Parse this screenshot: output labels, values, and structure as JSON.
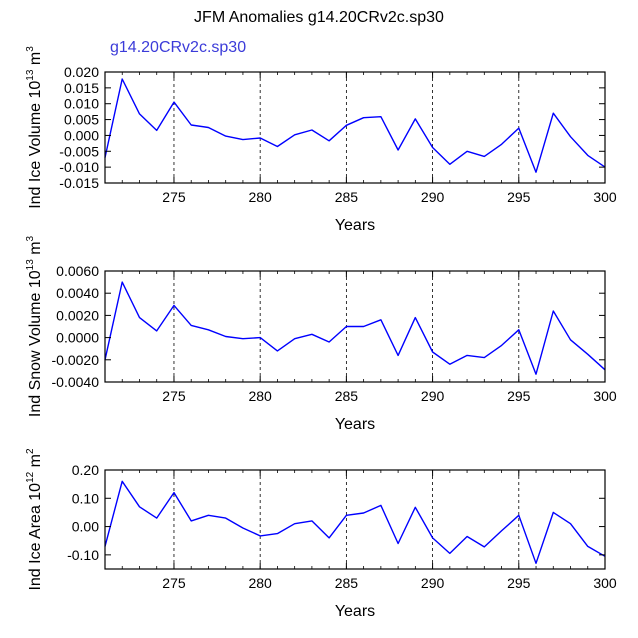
{
  "title": "JFM Anomalies g14.20CRv2c.sp30",
  "case_label": "g14.20CRv2c.sp30",
  "chart_data": [
    {
      "type": "line",
      "ylabel": {
        "prefix": "Ind Ice Volume 10",
        "exp": "13",
        "suffix": " m",
        "unit_exp": "3"
      },
      "xlabel": "Years",
      "xlim": [
        271,
        300
      ],
      "ylim": [
        -0.015,
        0.02
      ],
      "x_ticks": [
        275,
        280,
        285,
        290,
        295,
        300
      ],
      "x_tick_labels": [
        "275",
        "280",
        "285",
        "290",
        "295",
        "300"
      ],
      "y_ticks": [
        0.02,
        0.015,
        0.01,
        0.005,
        0.0,
        -0.005,
        -0.01,
        -0.015
      ],
      "y_tick_labels": [
        "0.020",
        "0.015",
        "0.010",
        "0.005",
        "0.000",
        "-0.005",
        "-0.010",
        "-0.015"
      ],
      "ref_lines": [
        275,
        280,
        285,
        290,
        295
      ],
      "color": "#0000ff",
      "x": [
        271,
        272,
        273,
        274,
        275,
        276,
        277,
        278,
        279,
        280,
        281,
        282,
        283,
        284,
        285,
        286,
        287,
        288,
        289,
        290,
        291,
        292,
        293,
        294,
        295,
        296,
        297,
        298,
        299,
        300
      ],
      "values": [
        -0.007,
        0.0178,
        0.0068,
        0.0016,
        0.0105,
        0.0033,
        0.0025,
        -0.0002,
        -0.0013,
        -0.0008,
        -0.0035,
        0.0002,
        0.0017,
        -0.0017,
        0.0032,
        0.0056,
        0.0059,
        -0.0046,
        0.0052,
        -0.0038,
        -0.0091,
        -0.005,
        -0.0066,
        -0.0028,
        0.0023,
        -0.0116,
        0.007,
        -0.0004,
        -0.0063,
        -0.01
      ]
    },
    {
      "type": "line",
      "ylabel": {
        "prefix": "Ind Snow Volume 10",
        "exp": "13",
        "suffix": " m",
        "unit_exp": "3"
      },
      "xlabel": "Years",
      "xlim": [
        271,
        300
      ],
      "ylim": [
        -0.004,
        0.006
      ],
      "x_ticks": [
        275,
        280,
        285,
        290,
        295,
        300
      ],
      "x_tick_labels": [
        "275",
        "280",
        "285",
        "290",
        "295",
        "300"
      ],
      "y_ticks": [
        0.006,
        0.004,
        0.002,
        0.0,
        -0.002,
        -0.004
      ],
      "y_tick_labels": [
        "0.0060",
        "0.0040",
        "0.0020",
        "0.0000",
        "-0.0020",
        "-0.0040"
      ],
      "ref_lines": [
        275,
        280,
        285,
        290,
        295
      ],
      "color": "#0000ff",
      "x": [
        271,
        272,
        273,
        274,
        275,
        276,
        277,
        278,
        279,
        280,
        281,
        282,
        283,
        284,
        285,
        286,
        287,
        288,
        289,
        290,
        291,
        292,
        293,
        294,
        295,
        296,
        297,
        298,
        299,
        300
      ],
      "values": [
        -0.002,
        0.005,
        0.0018,
        0.0006,
        0.0029,
        0.0011,
        0.0007,
        0.0001,
        -0.0001,
        0.0,
        -0.0012,
        -0.0001,
        0.0003,
        -0.0004,
        0.001,
        0.001,
        0.0016,
        -0.0016,
        0.0018,
        -0.0013,
        -0.0024,
        -0.0016,
        -0.0018,
        -0.0007,
        0.0007,
        -0.0033,
        0.0024,
        -0.0002,
        -0.0015,
        -0.0029
      ]
    },
    {
      "type": "line",
      "ylabel": {
        "prefix": "Ind Ice Area 10",
        "exp": "12",
        "suffix": " m",
        "unit_exp": "2"
      },
      "xlabel": "Years",
      "xlim": [
        271,
        300
      ],
      "ylim": [
        -0.15,
        0.2
      ],
      "x_ticks": [
        275,
        280,
        285,
        290,
        295,
        300
      ],
      "x_tick_labels": [
        "275",
        "280",
        "285",
        "290",
        "295",
        "300"
      ],
      "y_ticks": [
        0.2,
        0.1,
        0.0,
        -0.1
      ],
      "y_tick_labels": [
        "0.20",
        "0.10",
        "0.00",
        "-0.10"
      ],
      "ref_lines": [
        275,
        280,
        285,
        290,
        295
      ],
      "color": "#0000ff",
      "x": [
        271,
        272,
        273,
        274,
        275,
        276,
        277,
        278,
        279,
        280,
        281,
        282,
        283,
        284,
        285,
        286,
        287,
        288,
        289,
        290,
        291,
        292,
        293,
        294,
        295,
        296,
        297,
        298,
        299,
        300
      ],
      "values": [
        -0.07,
        0.16,
        0.07,
        0.03,
        0.12,
        0.02,
        0.04,
        0.03,
        -0.005,
        -0.033,
        -0.025,
        0.01,
        0.02,
        -0.04,
        0.04,
        0.048,
        0.075,
        -0.06,
        0.068,
        -0.04,
        -0.095,
        -0.035,
        -0.072,
        -0.015,
        0.04,
        -0.13,
        0.05,
        0.01,
        -0.07,
        -0.105
      ]
    }
  ]
}
